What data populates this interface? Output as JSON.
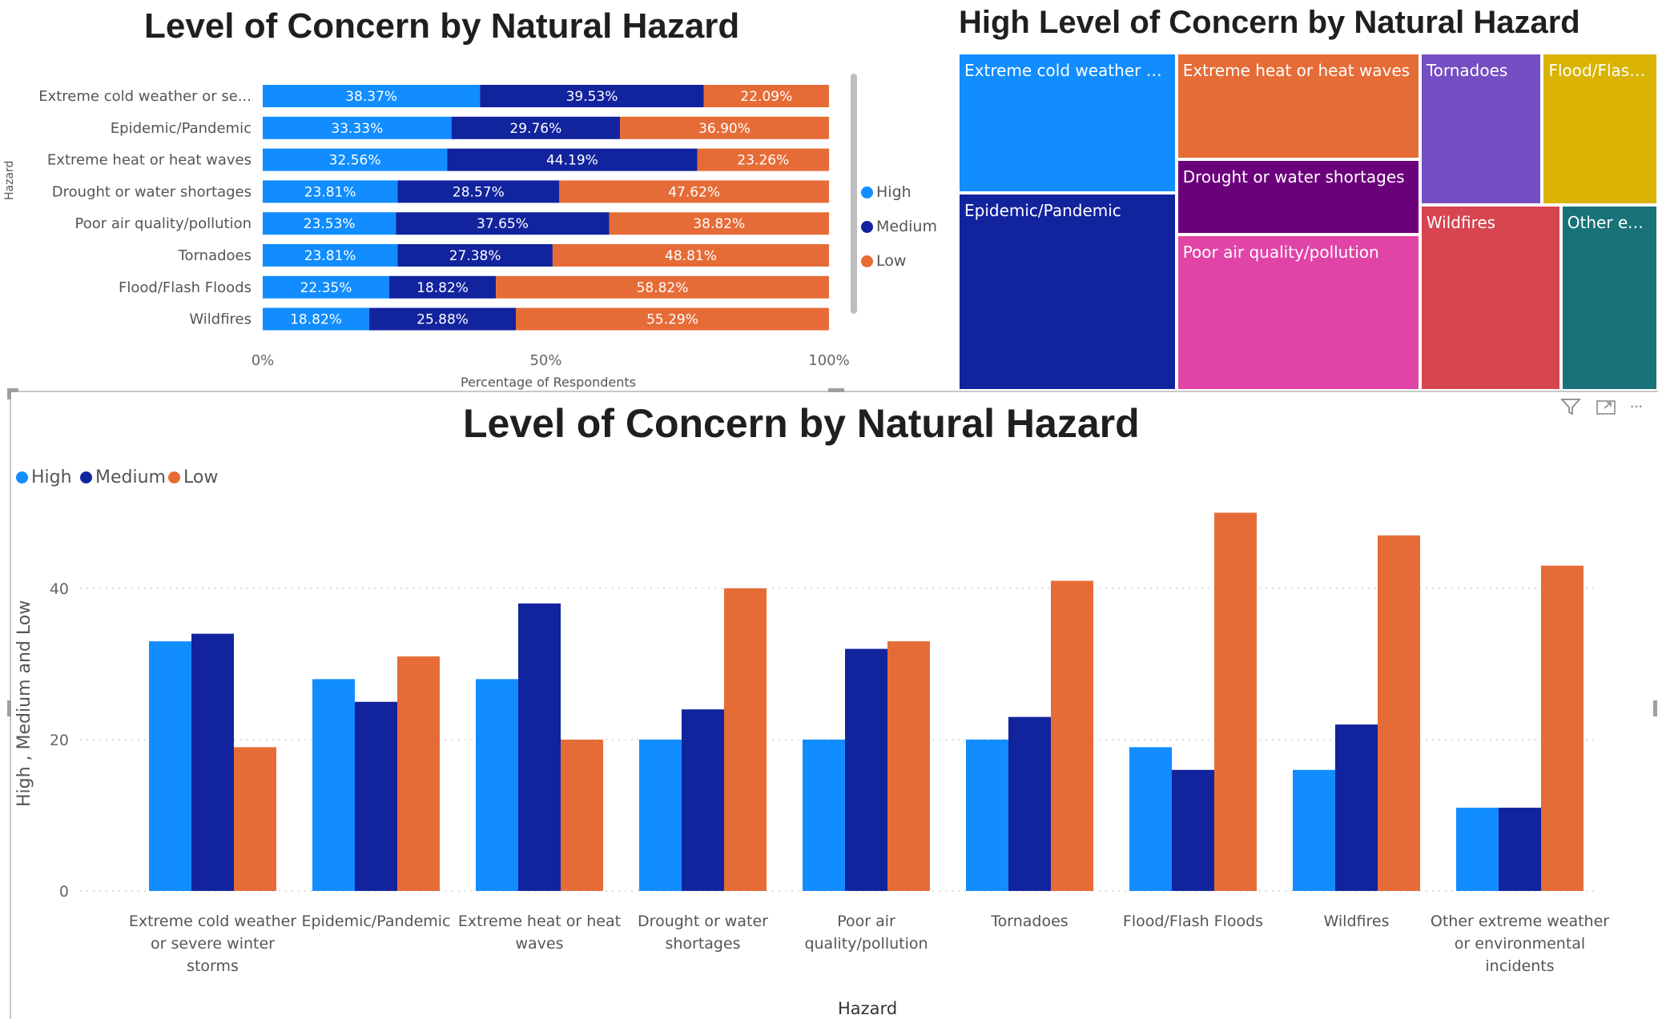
{
  "colors": {
    "high": "#118DFF",
    "medium": "#12239E",
    "low": "#E66C37"
  },
  "chart_data": [
    {
      "type": "bar",
      "orientation": "horizontal",
      "stacking": "100%",
      "title": "Level of Concern by Natural Hazard",
      "xlabel": "Percentage of Respondents",
      "ylabel": "Hazard",
      "xticks": [
        "0%",
        "50%",
        "100%"
      ],
      "xlim": [
        0,
        100
      ],
      "categories": [
        "Extreme cold weather or se...",
        "Epidemic/Pandemic",
        "Extreme heat or heat waves",
        "Drought or water shortages",
        "Poor air quality/pollution",
        "Tornadoes",
        "Flood/Flash Floods",
        "Wildfires"
      ],
      "series": [
        {
          "name": "High",
          "values": [
            38.37,
            33.33,
            32.56,
            23.81,
            23.53,
            23.81,
            22.35,
            18.82
          ],
          "labels": [
            "38.37%",
            "33.33%",
            "32.56%",
            "23.81%",
            "23.53%",
            "23.81%",
            "22.35%",
            "18.82%"
          ]
        },
        {
          "name": "Medium",
          "values": [
            39.53,
            29.76,
            44.19,
            28.57,
            37.65,
            27.38,
            18.82,
            25.88
          ],
          "labels": [
            "39.53%",
            "29.76%",
            "44.19%",
            "28.57%",
            "37.65%",
            "27.38%",
            "18.82%",
            "25.88%"
          ]
        },
        {
          "name": "Low",
          "values": [
            22.09,
            36.9,
            23.26,
            47.62,
            38.82,
            48.81,
            58.82,
            55.29
          ],
          "labels": [
            "22.09%",
            "36.90%",
            "23.26%",
            "47.62%",
            "38.82%",
            "48.81%",
            "58.82%",
            "55.29%"
          ]
        }
      ],
      "legend": {
        "position": "right",
        "items": [
          "High",
          "Medium",
          "Low"
        ]
      }
    },
    {
      "type": "treemap",
      "title": "High Level of Concern by Natural Hazard",
      "items": [
        {
          "label": "Extreme cold weather or ...",
          "value": 33,
          "color": "#118DFF"
        },
        {
          "label": "Epidemic/Pandemic",
          "value": 28,
          "color": "#12239E"
        },
        {
          "label": "Extreme heat or heat waves",
          "value": 28,
          "color": "#E66C37"
        },
        {
          "label": "Drought or water shortages",
          "value": 20,
          "color": "#6B007B"
        },
        {
          "label": "Poor air quality/pollution",
          "value": 20,
          "color": "#E044A7"
        },
        {
          "label": "Tornadoes",
          "value": 20,
          "color": "#744EC2"
        },
        {
          "label": "Flood/Flash...",
          "value": 19,
          "color": "#D9B300"
        },
        {
          "label": "Wildfires",
          "value": 16,
          "color": "#D64550"
        },
        {
          "label": "Other ex...",
          "value": 11,
          "color": "#197278"
        }
      ]
    },
    {
      "type": "bar",
      "orientation": "vertical",
      "grouping": "clustered",
      "title": "Level of Concern by Natural Hazard",
      "xlabel": "Hazard",
      "ylabel": "High , Medium and Low",
      "ylim": [
        0,
        50
      ],
      "yticks": [
        0,
        20,
        40
      ],
      "grid": true,
      "categories": [
        "Extreme cold weather or severe winter storms",
        "Epidemic/Pandemic",
        "Extreme heat or heat waves",
        "Drought or water shortages",
        "Poor air quality/pollution",
        "Tornadoes",
        "Flood/Flash Floods",
        "Wildfires",
        "Other extreme weather or environmental incidents"
      ],
      "series": [
        {
          "name": "High",
          "values": [
            33,
            28,
            28,
            20,
            20,
            20,
            19,
            16,
            11
          ]
        },
        {
          "name": "Medium",
          "values": [
            34,
            25,
            38,
            24,
            32,
            23,
            16,
            22,
            11
          ]
        },
        {
          "name": "Low",
          "values": [
            19,
            31,
            20,
            40,
            33,
            41,
            50,
            47,
            43
          ]
        }
      ],
      "legend": {
        "position": "top-left",
        "items": [
          "High",
          "Medium",
          "Low"
        ]
      }
    }
  ],
  "toolbar": {
    "filter_icon": "filter-icon",
    "focus_icon": "focus-mode-icon",
    "more_icon": "more-options-icon",
    "more_label": "···"
  }
}
